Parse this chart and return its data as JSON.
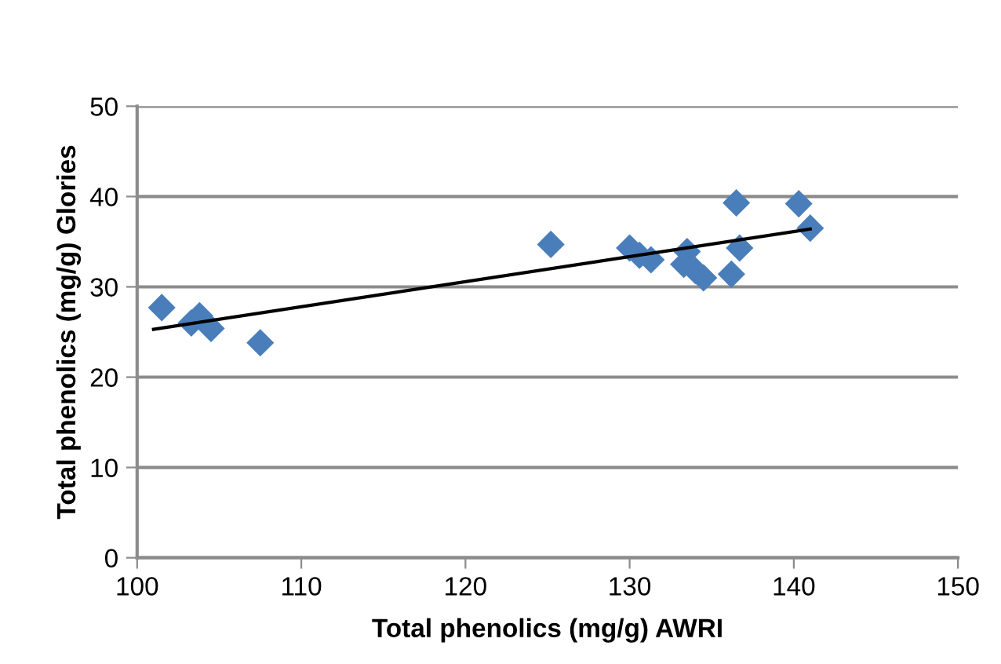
{
  "chart_data": {
    "type": "scatter",
    "xlabel": "Total phenolics (mg/g) AWRI",
    "ylabel": "Total phenolics (mg/g) Glories",
    "series": [
      {
        "color": "#4a7ebb",
        "marker": "diamond",
        "x": [
          101.5,
          103.3,
          103.8,
          104.5,
          107.5,
          125.2,
          130,
          130.6,
          131.3,
          133.5,
          133.3,
          134,
          134.5,
          136.2,
          136.5,
          136.7,
          140.3,
          141
        ],
        "values": [
          27.7,
          26,
          26.8,
          25.4,
          23.8,
          34.7,
          34.3,
          33.5,
          33,
          33.9,
          32.5,
          31.8,
          31,
          31.4,
          39.3,
          34.3,
          39.2,
          36.5
        ]
      },
      {
        "type": "line",
        "color": "#000000",
        "marker": "none",
        "x": [
          101,
          141
        ],
        "values": [
          25.3,
          36.4
        ]
      }
    ],
    "xlim": [
      100,
      150
    ],
    "ylim": [
      0,
      50
    ],
    "xticks": [
      100,
      110,
      120,
      130,
      140,
      150
    ],
    "yticks": [
      0,
      10,
      20,
      30,
      40,
      50
    ],
    "grid": "y",
    "legend": false
  }
}
